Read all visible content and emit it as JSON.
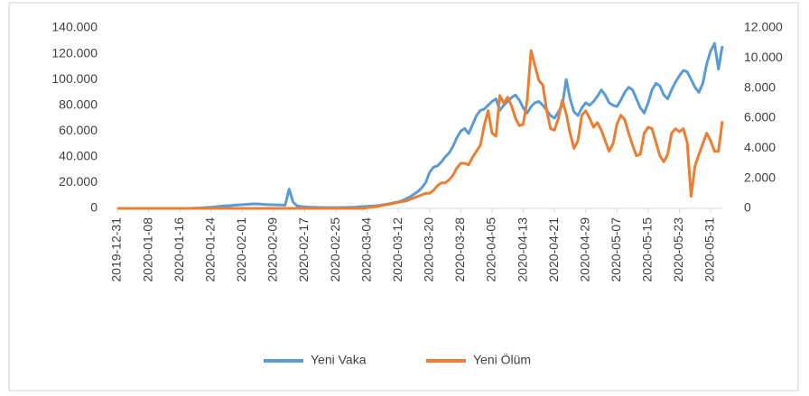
{
  "chart_data": {
    "type": "line",
    "x": [
      "2019-12-31",
      "2020-01-01",
      "2020-01-02",
      "2020-01-03",
      "2020-01-04",
      "2020-01-05",
      "2020-01-06",
      "2020-01-07",
      "2020-01-08",
      "2020-01-09",
      "2020-01-10",
      "2020-01-11",
      "2020-01-12",
      "2020-01-13",
      "2020-01-14",
      "2020-01-15",
      "2020-01-16",
      "2020-01-17",
      "2020-01-18",
      "2020-01-19",
      "2020-01-20",
      "2020-01-21",
      "2020-01-22",
      "2020-01-23",
      "2020-01-24",
      "2020-01-25",
      "2020-01-26",
      "2020-01-27",
      "2020-01-28",
      "2020-01-29",
      "2020-01-30",
      "2020-01-31",
      "2020-02-01",
      "2020-02-02",
      "2020-02-03",
      "2020-02-04",
      "2020-02-05",
      "2020-02-06",
      "2020-02-07",
      "2020-02-08",
      "2020-02-09",
      "2020-02-10",
      "2020-02-11",
      "2020-02-12",
      "2020-02-13",
      "2020-02-14",
      "2020-02-15",
      "2020-02-16",
      "2020-02-17",
      "2020-02-18",
      "2020-02-19",
      "2020-02-20",
      "2020-02-21",
      "2020-02-22",
      "2020-02-23",
      "2020-02-24",
      "2020-02-25",
      "2020-02-26",
      "2020-02-27",
      "2020-02-28",
      "2020-02-29",
      "2020-03-01",
      "2020-03-02",
      "2020-03-03",
      "2020-03-04",
      "2020-03-05",
      "2020-03-06",
      "2020-03-07",
      "2020-03-08",
      "2020-03-09",
      "2020-03-10",
      "2020-03-11",
      "2020-03-12",
      "2020-03-13",
      "2020-03-14",
      "2020-03-15",
      "2020-03-16",
      "2020-03-17",
      "2020-03-18",
      "2020-03-19",
      "2020-03-20",
      "2020-03-21",
      "2020-03-22",
      "2020-03-23",
      "2020-03-24",
      "2020-03-25",
      "2020-03-26",
      "2020-03-27",
      "2020-03-28",
      "2020-03-29",
      "2020-03-30",
      "2020-03-31",
      "2020-04-01",
      "2020-04-02",
      "2020-04-03",
      "2020-04-04",
      "2020-04-05",
      "2020-04-06",
      "2020-04-07",
      "2020-04-08",
      "2020-04-09",
      "2020-04-10",
      "2020-04-11",
      "2020-04-12",
      "2020-04-13",
      "2020-04-14",
      "2020-04-15",
      "2020-04-16",
      "2020-04-17",
      "2020-04-18",
      "2020-04-19",
      "2020-04-20",
      "2020-04-21",
      "2020-04-22",
      "2020-04-23",
      "2020-04-24",
      "2020-04-25",
      "2020-04-26",
      "2020-04-27",
      "2020-04-28",
      "2020-04-29",
      "2020-04-30",
      "2020-05-01",
      "2020-05-02",
      "2020-05-03",
      "2020-05-04",
      "2020-05-05",
      "2020-05-06",
      "2020-05-07",
      "2020-05-08",
      "2020-05-09",
      "2020-05-10",
      "2020-05-11",
      "2020-05-12",
      "2020-05-13",
      "2020-05-14",
      "2020-05-15",
      "2020-05-16",
      "2020-05-17",
      "2020-05-18",
      "2020-05-19",
      "2020-05-20",
      "2020-05-21",
      "2020-05-22",
      "2020-05-23",
      "2020-05-24",
      "2020-05-25",
      "2020-05-26",
      "2020-05-27",
      "2020-05-28",
      "2020-05-29",
      "2020-05-30",
      "2020-05-31",
      "2020-06-01",
      "2020-06-02",
      "2020-06-03"
    ],
    "xticks": [
      "2019-12-31",
      "2020-01-08",
      "2020-01-16",
      "2020-01-24",
      "2020-02-01",
      "2020-02-09",
      "2020-02-17",
      "2020-02-25",
      "2020-03-04",
      "2020-03-12",
      "2020-03-20",
      "2020-03-28",
      "2020-04-05",
      "2020-04-13",
      "2020-04-21",
      "2020-04-29",
      "2020-05-07",
      "2020-05-15",
      "2020-05-23",
      "2020-05-31"
    ],
    "series": [
      {
        "name": "Yeni Vaka",
        "color": "#5b9bd5",
        "values": [
          0,
          0,
          0,
          0,
          0,
          0,
          0,
          0,
          0,
          0,
          0,
          0,
          0,
          0,
          0,
          0,
          0,
          0,
          0,
          0,
          200,
          300,
          500,
          700,
          900,
          1200,
          1500,
          1800,
          2000,
          2200,
          2500,
          2700,
          2900,
          3100,
          3300,
          3500,
          3400,
          3200,
          3000,
          2900,
          2800,
          2700,
          2600,
          2500,
          15000,
          5000,
          2000,
          1500,
          1200,
          1000,
          900,
          800,
          700,
          700,
          600,
          600,
          600,
          600,
          700,
          800,
          900,
          1000,
          1200,
          1400,
          1600,
          1800,
          2000,
          2300,
          2700,
          3200,
          3800,
          4500,
          5000,
          6000,
          7500,
          9000,
          11000,
          13000,
          16000,
          20000,
          28000,
          32000,
          33000,
          36000,
          40000,
          43000,
          48000,
          55000,
          60000,
          62000,
          58000,
          65000,
          72000,
          76000,
          77000,
          80000,
          83000,
          85000,
          76000,
          80000,
          83000,
          86000,
          88000,
          84000,
          78000,
          74000,
          79000,
          82000,
          83000,
          80000,
          76000,
          72000,
          70000,
          75000,
          80000,
          100000,
          85000,
          75000,
          72000,
          78000,
          82000,
          80000,
          83000,
          87000,
          92000,
          88000,
          82000,
          80000,
          79000,
          84000,
          90000,
          94000,
          92000,
          85000,
          78000,
          74000,
          82000,
          92000,
          97000,
          95000,
          88000,
          85000,
          92000,
          98000,
          103000,
          107000,
          106000,
          100000,
          94000,
          90000,
          97000,
          112000,
          122000,
          128000,
          108000,
          126000
        ]
      },
      {
        "name": "Yeni Ölüm",
        "color": "#ed7d31",
        "axis": "y2",
        "values": [
          0,
          0,
          0,
          0,
          0,
          0,
          0,
          0,
          0,
          0,
          0,
          0,
          0,
          0,
          0,
          0,
          0,
          0,
          0,
          0,
          0,
          0,
          0,
          0,
          0,
          0,
          0,
          0,
          0,
          0,
          0,
          0,
          0,
          0,
          0,
          0,
          0,
          0,
          0,
          0,
          0,
          0,
          0,
          0,
          0,
          0,
          0,
          0,
          0,
          0,
          0,
          0,
          0,
          0,
          0,
          0,
          0,
          0,
          0,
          0,
          0,
          0,
          0,
          0,
          50,
          80,
          100,
          150,
          200,
          250,
          300,
          350,
          400,
          450,
          500,
          600,
          700,
          800,
          900,
          1000,
          1000,
          1200,
          1500,
          1700,
          1700,
          1900,
          2200,
          2700,
          3000,
          3000,
          2900,
          3400,
          3800,
          4200,
          5500,
          6500,
          5000,
          4800,
          7500,
          7000,
          7400,
          6800,
          6000,
          5500,
          5600,
          7200,
          10500,
          9500,
          8500,
          8200,
          6500,
          5300,
          5200,
          6000,
          7200,
          6300,
          5000,
          4000,
          4500,
          6200,
          6500,
          6000,
          5400,
          5700,
          5200,
          4500,
          3800,
          4300,
          5600,
          6200,
          5900,
          5000,
          4200,
          3500,
          3600,
          5000,
          5400,
          5300,
          4400,
          3500,
          3100,
          3600,
          5000,
          5300,
          5100,
          5300,
          4400,
          800,
          2800,
          3600,
          4300,
          5000,
          4500,
          3800,
          3800,
          5800
        ]
      }
    ],
    "ylim": [
      0,
      140000
    ],
    "yticks": [
      0,
      {
        "value": 20000,
        "label": "20.000"
      },
      {
        "value": 40000,
        "label": "40.000"
      },
      {
        "value": 60000,
        "label": "60.000"
      },
      {
        "value": 80000,
        "label": "80.000"
      },
      {
        "value": 100000,
        "label": "100.000"
      },
      {
        "value": 120000,
        "label": "120.000"
      },
      {
        "value": 140000,
        "label": "140.000"
      }
    ],
    "y2lim": [
      0,
      12000
    ],
    "y2ticks": [
      0,
      {
        "value": 2000,
        "label": "2.000"
      },
      {
        "value": 4000,
        "label": "4.000"
      },
      {
        "value": 6000,
        "label": "6.000"
      },
      {
        "value": 8000,
        "label": "8.000"
      },
      {
        "value": 10000,
        "label": "10.000"
      },
      {
        "value": 12000,
        "label": "12.000"
      }
    ],
    "legend": "bottom"
  }
}
